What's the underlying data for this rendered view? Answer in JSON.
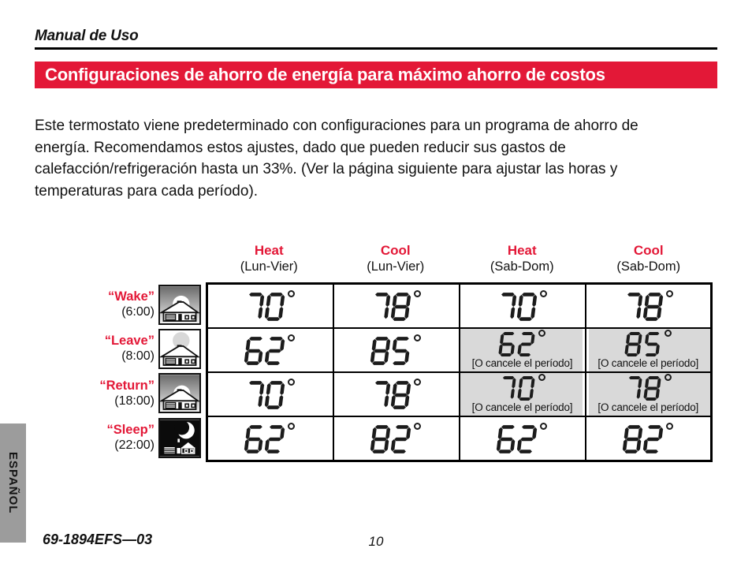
{
  "page": {
    "header_title": "Manual de Uso",
    "banner_title": "Configuraciones de ahorro de energía para máximo ahorro de costos",
    "intro_paragraph": "Este termostato viene predeterminado con configuraciones para un programa de ahorro de energía. Recomendamos estos ajustes, dado que pueden reducir sus gastos de calefacción/refrigeración hasta un 33%. (Ver la página siguiente para ajustar las horas y temperaturas para cada período).",
    "side_tab": "ESPAÑOL",
    "footer_doc_number": "69-1894EFS—03",
    "footer_page_number": "10"
  },
  "colors": {
    "accent_red": "#e31837",
    "cell_gray": "#d9d9d9",
    "tab_gray": "#9c9c9c"
  },
  "schedule_table": {
    "temperature_unit": "°",
    "cancel_note": "[O cancele el período]",
    "column_headers": [
      {
        "label": "Heat",
        "sublabel": "(Lun-Vier)"
      },
      {
        "label": "Cool",
        "sublabel": "(Lun-Vier)"
      },
      {
        "label": "Heat",
        "sublabel": "(Sab-Dom)"
      },
      {
        "label": "Cool",
        "sublabel": "(Sab-Dom)"
      }
    ],
    "rows": [
      {
        "label": "“Wake”",
        "time": "(6:00)",
        "icon": "house-sunrise-icon",
        "cells": [
          {
            "temp": "70"
          },
          {
            "temp": "78"
          },
          {
            "temp": "70"
          },
          {
            "temp": "78"
          }
        ]
      },
      {
        "label": "“Leave”",
        "time": "(8:00)",
        "icon": "house-day-sun-icon",
        "cells": [
          {
            "temp": "62"
          },
          {
            "temp": "85"
          },
          {
            "temp": "62",
            "note": "[O cancele el período]"
          },
          {
            "temp": "85",
            "note": "[O cancele el período]"
          }
        ]
      },
      {
        "label": "“Return”",
        "time": "(18:00)",
        "icon": "house-sunset-icon",
        "cells": [
          {
            "temp": "70"
          },
          {
            "temp": "78"
          },
          {
            "temp": "70",
            "note": "[O cancele el período]"
          },
          {
            "temp": "78",
            "note": "[O cancele el período]"
          }
        ]
      },
      {
        "label": "“Sleep”",
        "time": "(22:00)",
        "icon": "house-moon-icon",
        "cells": [
          {
            "temp": "62"
          },
          {
            "temp": "82"
          },
          {
            "temp": "62"
          },
          {
            "temp": "82"
          }
        ]
      }
    ]
  }
}
